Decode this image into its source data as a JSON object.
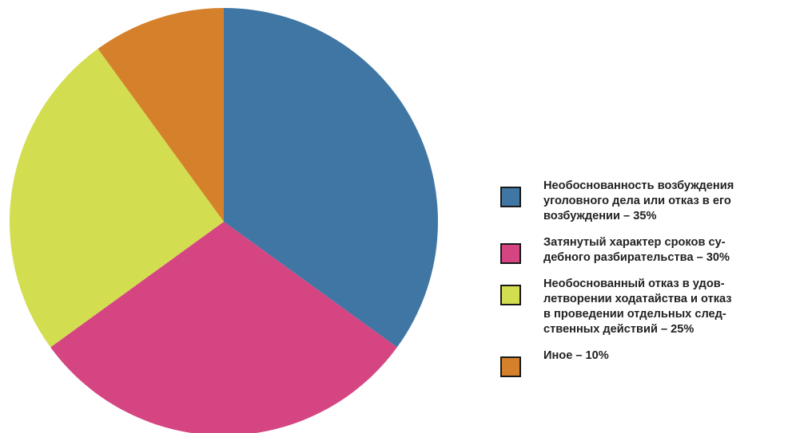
{
  "chart_data": {
    "type": "pie",
    "title": "",
    "slices": [
      {
        "label": "Необоснованность возбуждения\nуголовного дела или отказ  в его\nвозбуждении – 35%",
        "value": 35,
        "color": "#3f76a3"
      },
      {
        "label": "Затянутый характер сроков су-\nдебного разбирательства – 30%",
        "value": 30,
        "color": "#d54582"
      },
      {
        "label": "Необоснованный отказ в удов-\nлетворении ходатайства и отказ\nв проведении отдельных след-\nственных действий – 25%",
        "value": 25,
        "color": "#d3dd50"
      },
      {
        "label": "Иное – 10%",
        "value": 10,
        "color": "#d5812b"
      }
    ],
    "start_angle": "12 o'clock",
    "direction": "clockwise",
    "legend_position": "right"
  }
}
